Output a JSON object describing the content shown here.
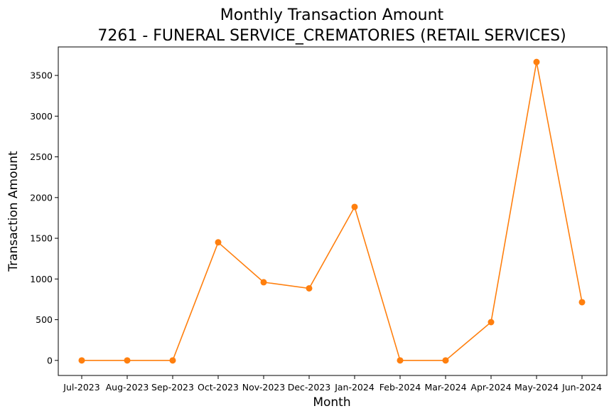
{
  "chart_data": {
    "type": "line",
    "title": "Monthly Transaction Amount",
    "subtitle": "7261 - FUNERAL SERVICE_CREMATORIES (RETAIL SERVICES)",
    "xlabel": "Month",
    "ylabel": "Transaction Amount",
    "categories": [
      "Jul-2023",
      "Aug-2023",
      "Sep-2023",
      "Oct-2023",
      "Nov-2023",
      "Dec-2023",
      "Jan-2024",
      "Feb-2024",
      "Mar-2024",
      "Apr-2024",
      "May-2024",
      "Jun-2024"
    ],
    "series": [
      {
        "values": [
          0,
          0,
          0,
          1450,
          960,
          885,
          1885,
          0,
          0,
          470,
          3665,
          715
        ],
        "color": "#ff7f0e",
        "marker": "circle"
      }
    ],
    "yticks": [
      0,
      500,
      1000,
      1500,
      2000,
      2500,
      3000,
      3500
    ],
    "ylim": [
      -185,
      3850
    ],
    "grid": false,
    "legend": "none"
  }
}
